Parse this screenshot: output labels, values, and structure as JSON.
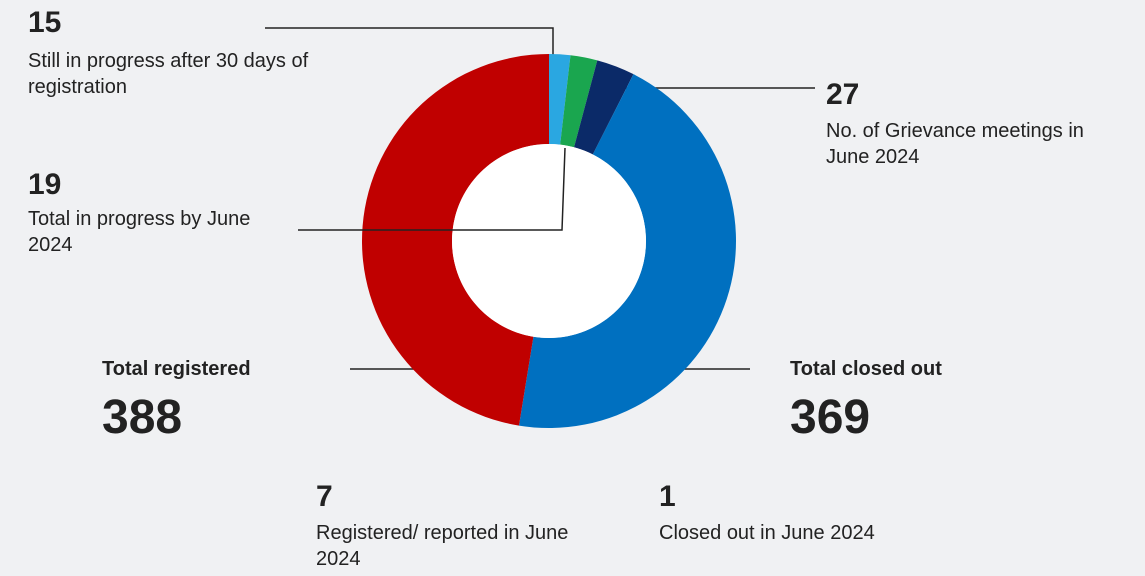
{
  "chart_data": {
    "type": "pie",
    "donut": true,
    "categories": [
      "Still in progress after 30 days of registration",
      "Total in progress by June 2024",
      "No. of Grievance meetings in June 2024",
      "Total closed out",
      "Total registered"
    ],
    "values": [
      15,
      19,
      27,
      369,
      388
    ],
    "colors": [
      "#2aa7e1",
      "#1aa64f",
      "#0b2a68",
      "#0070c0",
      "#c00000"
    ],
    "annotations": [
      {
        "value": 7,
        "label": "Registered/ reported in June 2024"
      },
      {
        "value": 1,
        "label": "Closed out in June 2024"
      }
    ]
  }
}
